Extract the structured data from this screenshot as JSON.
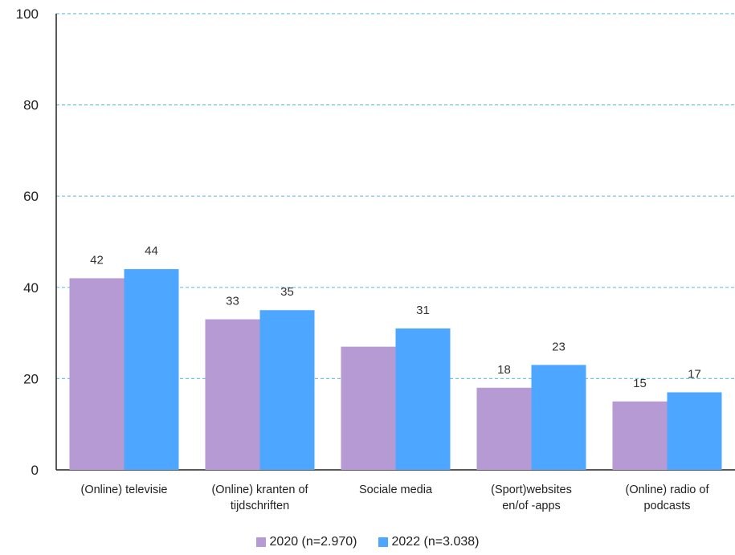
{
  "chart_data": {
    "type": "bar",
    "categories": [
      [
        "(Online) televisie"
      ],
      [
        "(Online) kranten of",
        "tijdschriften"
      ],
      [
        "Sociale media"
      ],
      [
        "(Sport)websites",
        "en/of -apps"
      ],
      [
        "(Online) radio of",
        "podcasts"
      ]
    ],
    "series": [
      {
        "name": "2020 (n=2.970)",
        "color": "#b59ad3",
        "values": [
          42,
          33,
          27,
          18,
          15
        ],
        "labels": [
          "42",
          "33",
          "",
          "18",
          "15"
        ]
      },
      {
        "name": "2022 (n=3.038)",
        "color": "#4da6ff",
        "values": [
          44,
          35,
          31,
          23,
          17
        ],
        "labels": [
          "44",
          "35",
          "31",
          "23",
          "17"
        ]
      }
    ],
    "ylim": [
      0,
      100
    ],
    "yticks": [
      0,
      20,
      40,
      60,
      80,
      100
    ],
    "grid": true,
    "grid_color": "#6ec3e0",
    "legend_position": "bottom"
  }
}
